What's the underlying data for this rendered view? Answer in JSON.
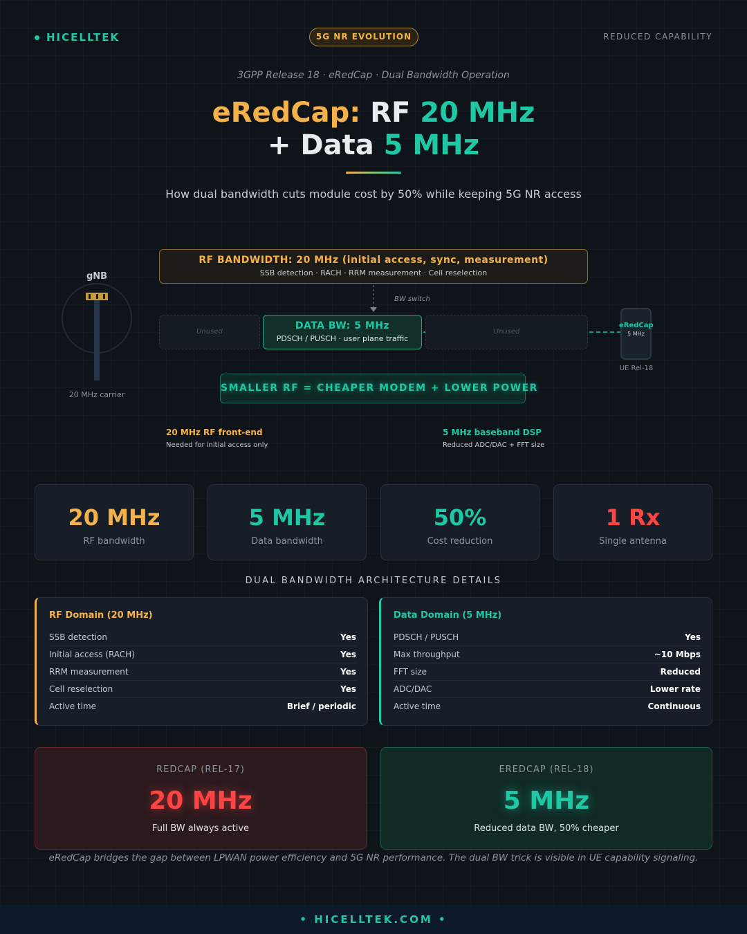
{
  "header": {
    "brand": "HICELLTEK",
    "badge": "5G NR EVOLUTION",
    "tag": "REDUCED CAPABILITY"
  },
  "hero": {
    "kicker": "3GPP Release 18 · eRedCap · Dual Bandwidth Operation",
    "title": {
      "part1": "eRedCap:",
      "part2": "RF",
      "part3": "20 MHz",
      "part4": "+ Data",
      "part5": "5 MHz"
    },
    "subtitle": "How dual bandwidth cuts module cost by 50% while keeping 5G NR access"
  },
  "diagram": {
    "gnb_label": "gNB",
    "gnb_caption": "20 MHz carrier",
    "rf_box": {
      "title": "RF BANDWIDTH: 20 MHz (initial access, sync, measurement)",
      "detail": "SSB detection · RACH · RRM measurement · Cell reselection"
    },
    "switch_label": "BW switch",
    "unused_left": "Unused",
    "data_box": {
      "title": "DATA BW: 5 MHz",
      "detail": "PDSCH / PUSCH · user plane traffic"
    },
    "unused_right": "Unused",
    "ue": {
      "name": "eRedCap",
      "bandwidth": "5 MHz",
      "caption": "UE Rel-18"
    },
    "banner": "SMALLER RF = CHEAPER MODEM + LOWER POWER",
    "notes": [
      {
        "title": "20 MHz RF front-end",
        "text": "Needed for initial access only"
      },
      {
        "title": "5 MHz baseband DSP",
        "text": "Reduced ADC/DAC + FFT size"
      }
    ]
  },
  "stats": [
    {
      "value": "20 MHz",
      "label": "RF bandwidth"
    },
    {
      "value": "5 MHz",
      "label": "Data bandwidth"
    },
    {
      "value": "50%",
      "label": "Cost reduction"
    },
    {
      "value": "1 Rx",
      "label": "Single antenna"
    }
  ],
  "section_title": "DUAL BANDWIDTH ARCHITECTURE DETAILS",
  "domains": [
    {
      "title": "RF Domain (20 MHz)",
      "rows": [
        [
          "SSB detection",
          "Yes"
        ],
        [
          "Initial access (RACH)",
          "Yes"
        ],
        [
          "RRM measurement",
          "Yes"
        ],
        [
          "Cell reselection",
          "Yes"
        ],
        [
          "Active time",
          "Brief / periodic"
        ]
      ]
    },
    {
      "title": "Data Domain (5 MHz)",
      "rows": [
        [
          "PDSCH / PUSCH",
          "Yes"
        ],
        [
          "Max throughput",
          "~10 Mbps"
        ],
        [
          "FFT size",
          "Reduced"
        ],
        [
          "ADC/DAC",
          "Lower rate"
        ],
        [
          "Active time",
          "Continuous"
        ]
      ]
    }
  ],
  "compare": [
    {
      "label": "REDCAP (REL-17)",
      "value": "20 MHz",
      "text": "Full BW always active"
    },
    {
      "label": "EREDCAP (REL-18)",
      "value": "5 MHz",
      "text": "Reduced data BW, 50% cheaper"
    }
  ],
  "footnote": "eRedCap bridges the gap between LPWAN power efficiency and 5G NR performance. The dual BW trick is visible in UE capability signaling.",
  "footer": "HICELLTEK.COM"
}
